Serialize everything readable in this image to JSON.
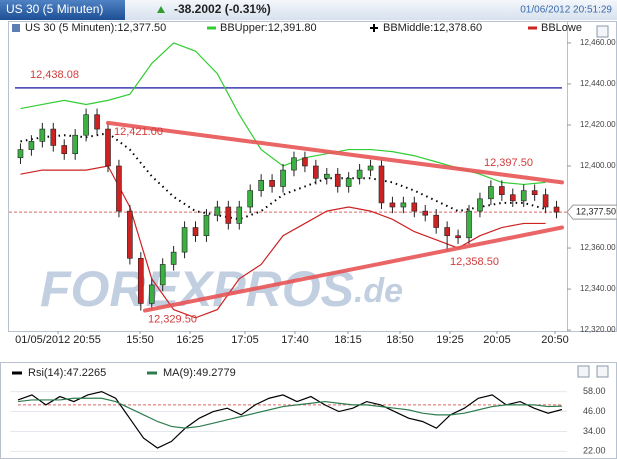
{
  "header": {
    "title": "US 30 (5 Minuten)",
    "change": "-38.2002 (-0.31%)",
    "datetime": "01/06/2012 20:51:29"
  },
  "chart_data": [
    {
      "type": "candlestick",
      "legend": [
        {
          "label": "US 30 (5 Minuten):12,377.50",
          "color": "#5b7db1"
        },
        {
          "label": "BBUpper:12,391.80",
          "color": "#33cc33"
        },
        {
          "label": "BBMiddle:12,378.60",
          "color": "#000000"
        },
        {
          "label": "BBLowe",
          "color": "#cc2222"
        }
      ],
      "ylim": [
        12317.6,
        12466.3
      ],
      "yticks": [
        {
          "value": 12460,
          "label": "12,460.00"
        },
        {
          "value": 12440,
          "label": "12,440.00"
        },
        {
          "value": 12420,
          "label": "12,420.00"
        },
        {
          "value": 12400,
          "label": "12,400.00"
        },
        {
          "value": 12360,
          "label": "12,360.00"
        },
        {
          "value": 12340,
          "label": "12,340.00"
        },
        {
          "value": 12320,
          "label": "12,320.00"
        }
      ],
      "xticks": [
        "01/05/2012 20:55",
        "15:50",
        "16:25",
        "17:05",
        "17:40",
        "18:15",
        "18:50",
        "19:25",
        "20:05",
        "20:50"
      ],
      "up_color": "#3cb043",
      "down_color": "#cc2222",
      "open": [
        12404,
        12408,
        12412,
        12418,
        12410,
        12406,
        12415,
        12425,
        12418,
        12400,
        12378,
        12355,
        12333,
        12342,
        12352,
        12358,
        12370,
        12366,
        12376,
        12380,
        12372,
        12380,
        12388,
        12393,
        12390,
        12398,
        12404,
        12400,
        12394,
        12396,
        12390,
        12394,
        12398,
        12400,
        12382,
        12380,
        12382,
        12378,
        12376,
        12370,
        12366,
        12365,
        12378,
        12384,
        12390,
        12386,
        12383,
        12388,
        12386,
        12380
      ],
      "high": [
        12411,
        12415,
        12421,
        12421,
        12413,
        12418,
        12428,
        12428,
        12421,
        12403,
        12381,
        12358,
        12345,
        12355,
        12361,
        12373,
        12373,
        12379,
        12383,
        12383,
        12383,
        12391,
        12396,
        12396,
        12401,
        12407,
        12407,
        12403,
        12399,
        12399,
        12397,
        12401,
        12403,
        12403,
        12385,
        12385,
        12385,
        12381,
        12379,
        12373,
        12369,
        12381,
        12387,
        12393,
        12393,
        12389,
        12391,
        12391,
        12389,
        12383
      ],
      "low": [
        12401,
        12405,
        12409,
        12407,
        12403,
        12403,
        12412,
        12415,
        12397,
        12375,
        12352,
        12329.5,
        12330,
        12339,
        12349,
        12355,
        12363,
        12363,
        12373,
        12369,
        12369,
        12377,
        12385,
        12387,
        12387,
        12395,
        12397,
        12391,
        12391,
        12387,
        12387,
        12391,
        12395,
        12379,
        12377,
        12377,
        12375,
        12373,
        12367,
        12358.5,
        12362,
        12362,
        12375,
        12381,
        12383,
        12380,
        12380,
        12383,
        12377,
        12374.5
      ],
      "close": [
        12408,
        12412,
        12418,
        12410,
        12406,
        12415,
        12425,
        12418,
        12400,
        12378,
        12355,
        12333,
        12342,
        12352,
        12358,
        12370,
        12366,
        12376,
        12380,
        12372,
        12380,
        12388,
        12393,
        12390,
        12398,
        12404,
        12400,
        12394,
        12396,
        12390,
        12394,
        12398,
        12400,
        12382,
        12380,
        12382,
        12378,
        12376,
        12370,
        12366,
        12365,
        12378,
        12384,
        12390,
        12386,
        12383,
        12388,
        12386,
        12380,
        12377.5
      ],
      "bands": [
        {
          "color": "#33cc33",
          "dash": false,
          "values": [
            12428,
            12430,
            12432,
            12430,
            12432,
            12435,
            12450,
            12460,
            12456,
            12445,
            12425,
            12408,
            12400,
            12404,
            12406,
            12408,
            12408,
            12407,
            12405,
            12402,
            12399,
            12396,
            12392,
            12391,
            12392
          ]
        },
        {
          "color": "#000000",
          "dash": true,
          "values": [
            12412,
            12414,
            12415,
            12414,
            12416,
            12408,
            12395,
            12385,
            12378,
            12376,
            12374,
            12378,
            12386,
            12390,
            12394,
            12394,
            12394,
            12392,
            12388,
            12383,
            12378,
            12380,
            12382,
            12382,
            12379
          ]
        },
        {
          "color": "#cc2222",
          "dash": false,
          "values": [
            12396,
            12398,
            12398,
            12398,
            12400,
            12380,
            12345,
            12330,
            12326,
            12330,
            12345,
            12352,
            12366,
            12372,
            12378,
            12380,
            12378,
            12374,
            12368,
            12364,
            12360,
            12366,
            12370,
            12372,
            12372
          ]
        }
      ],
      "trendlines": [
        {
          "color": "#e85555",
          "start": 12421,
          "end": 12392
        },
        {
          "color": "#e85555",
          "start": 12329.5,
          "end": 12370
        }
      ],
      "level": {
        "value": 12438.08,
        "label": "12,438.08",
        "color": "#3b3bb0"
      },
      "annotations": [
        {
          "value": 12421,
          "label": "12,421.00"
        },
        {
          "value": 12397.5,
          "label": "12,397.50"
        },
        {
          "value": 12358.5,
          "label": "12,358.50"
        },
        {
          "value": 12329.5,
          "label": "12,329.50"
        }
      ],
      "last": {
        "value": 12377.5,
        "label": "12,377.50"
      },
      "watermark": {
        "main": "FOREXPROS",
        "suffix": ".de"
      }
    },
    {
      "type": "line",
      "ylim": [
        18,
        65
      ],
      "yticks": [
        {
          "value": 58,
          "label": "58.00"
        },
        {
          "value": 46,
          "label": "46.00"
        },
        {
          "value": 34,
          "label": "34.00"
        },
        {
          "value": 22,
          "label": "22.00"
        }
      ],
      "level": 50,
      "series": [
        {
          "name": "Rsi(14):47.2265",
          "color": "#000000",
          "values": [
            53,
            56,
            50,
            55,
            52,
            56,
            58,
            54,
            42,
            30,
            24,
            28,
            36,
            42,
            46,
            48,
            44,
            50,
            54,
            56,
            52,
            55,
            50,
            46,
            48,
            52,
            50,
            46,
            42,
            40,
            36,
            44,
            48,
            54,
            56,
            50,
            52,
            48,
            45,
            47.2265
          ]
        },
        {
          "name": "MA(9):49.2779",
          "color": "#2e7d4f",
          "values": [
            52,
            53,
            53,
            53,
            54,
            54,
            54,
            52,
            48,
            44,
            40,
            37,
            36,
            37,
            39,
            41,
            43,
            45,
            47,
            49,
            50,
            51,
            52,
            51,
            50,
            50,
            49,
            48,
            47,
            45,
            44,
            44,
            45,
            47,
            49,
            50,
            50,
            50,
            49,
            49.2779
          ]
        }
      ]
    }
  ]
}
